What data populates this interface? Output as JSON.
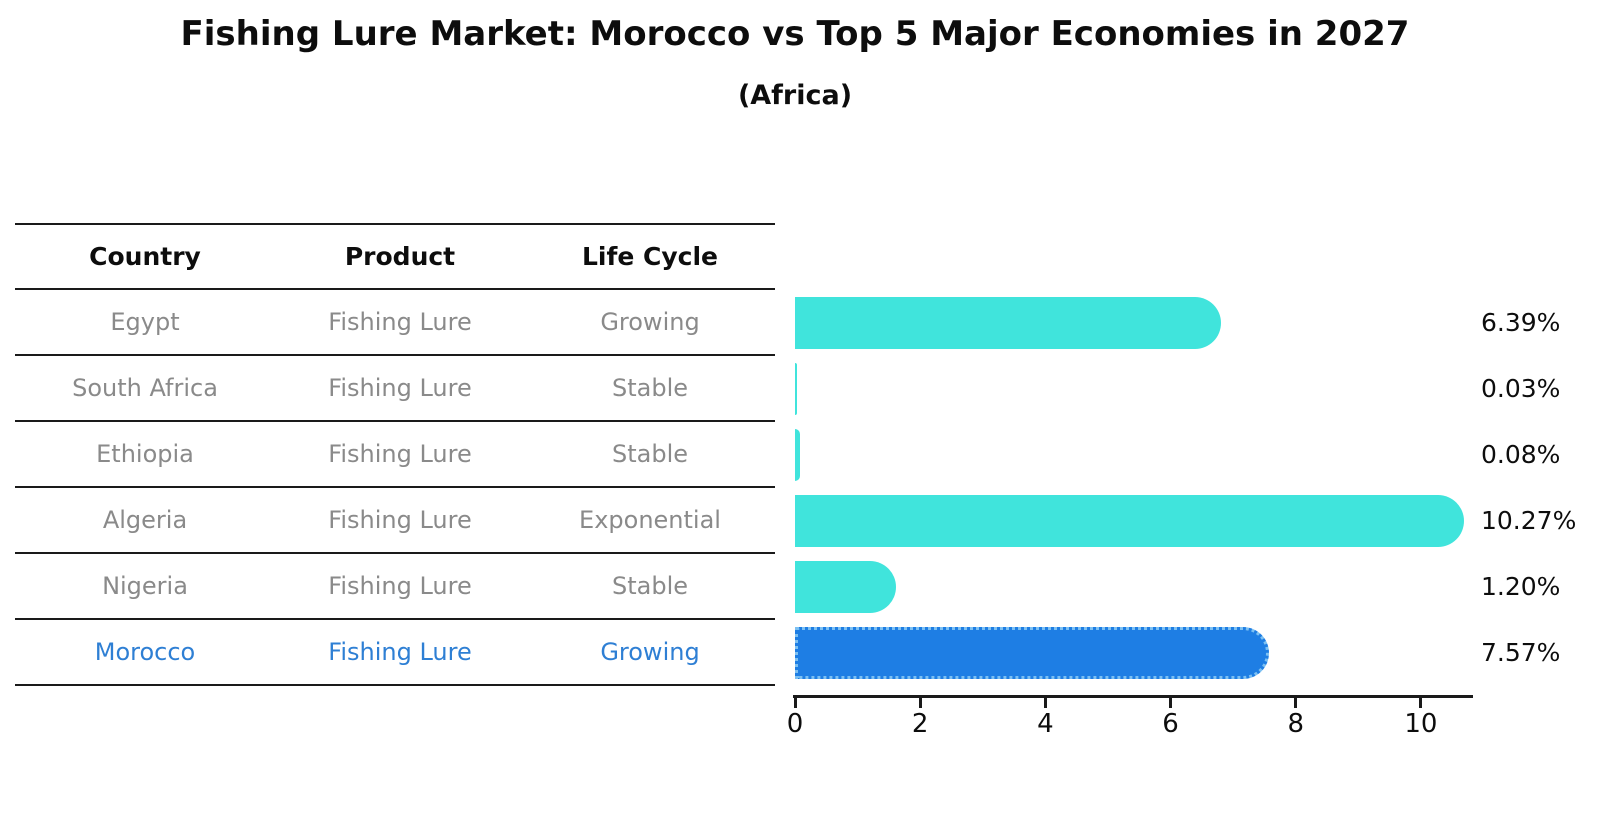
{
  "title": "Fishing Lure Market: Morocco vs Top 5 Major Economies in 2027",
  "subtitle": "(Africa)",
  "table": {
    "headers": [
      "Country",
      "Product",
      "Life Cycle"
    ],
    "rows": [
      {
        "country": "Egypt",
        "product": "Fishing Lure",
        "life_cycle": "Growing",
        "highlight": false
      },
      {
        "country": "South Africa",
        "product": "Fishing Lure",
        "life_cycle": "Stable",
        "highlight": false
      },
      {
        "country": "Ethiopia",
        "product": "Fishing Lure",
        "life_cycle": "Stable",
        "highlight": false
      },
      {
        "country": "Algeria",
        "product": "Fishing Lure",
        "life_cycle": "Exponential",
        "highlight": false
      },
      {
        "country": "Nigeria",
        "product": "Fishing Lure",
        "life_cycle": "Stable",
        "highlight": false
      },
      {
        "country": "Morocco",
        "product": "Fishing Lure",
        "life_cycle": "Growing",
        "highlight": true
      }
    ]
  },
  "chart_data": {
    "type": "bar",
    "orientation": "horizontal",
    "categories": [
      "Egypt",
      "South Africa",
      "Ethiopia",
      "Algeria",
      "Nigeria",
      "Morocco"
    ],
    "values": [
      6.39,
      0.03,
      0.08,
      10.27,
      1.2,
      7.57
    ],
    "value_labels": [
      "6.39%",
      "0.03%",
      "0.08%",
      "10.27%",
      "1.20%",
      "7.57%"
    ],
    "highlight_index": 5,
    "xlim": [
      0,
      10.8
    ],
    "xticks": [
      0,
      2,
      4,
      6,
      8,
      10
    ],
    "xtick_labels": [
      "0",
      "2",
      "4",
      "6",
      "8",
      "10"
    ],
    "grid": false,
    "legend": false,
    "bar_color": "#40e4dc",
    "highlight_bar_color": "#1e7ee4",
    "highlight_text_color": "#2e7fd4"
  }
}
